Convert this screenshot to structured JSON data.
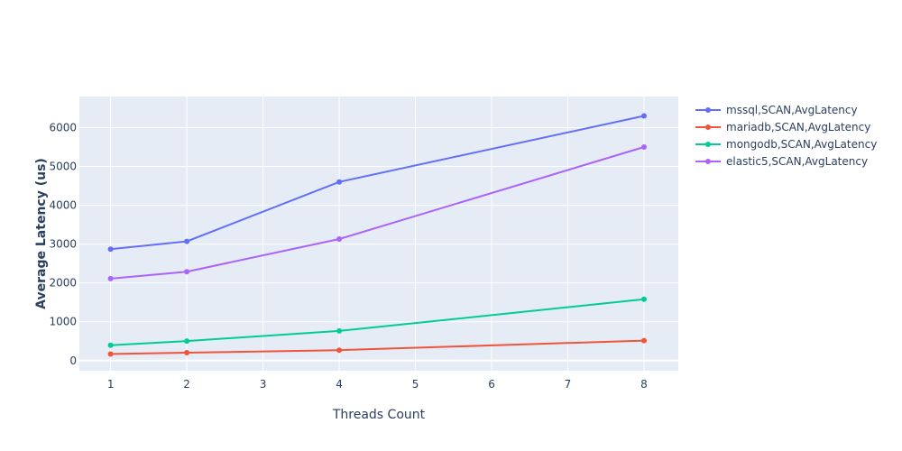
{
  "chart_data": {
    "type": "line",
    "title": "",
    "xlabel": "Threads Count",
    "ylabel": "Average Latency (us)",
    "x_ticks": [
      1,
      2,
      3,
      4,
      5,
      6,
      7,
      8
    ],
    "y_ticks": [
      0,
      1000,
      2000,
      3000,
      4000,
      5000,
      6000
    ],
    "xlim": [
      0.59,
      8.45
    ],
    "ylim": [
      -260,
      6800
    ],
    "grid": true,
    "legend_position": "right",
    "plot_background": "#E5ECF6",
    "x": [
      1,
      2,
      4,
      8
    ],
    "series": [
      {
        "name": "mssql,SCAN,AvgLatency",
        "color": "#636EFA",
        "values": [
          2870,
          3070,
          4600,
          6300
        ]
      },
      {
        "name": "mariadb,SCAN,AvgLatency",
        "color": "#EF553B",
        "values": [
          170,
          205,
          270,
          515
        ]
      },
      {
        "name": "mongodb,SCAN,AvgLatency",
        "color": "#00CC96",
        "values": [
          395,
          505,
          765,
          1580
        ]
      },
      {
        "name": "elastic5,SCAN,AvgLatency",
        "color": "#AB63FA",
        "values": [
          2110,
          2290,
          3130,
          5500
        ]
      }
    ]
  }
}
